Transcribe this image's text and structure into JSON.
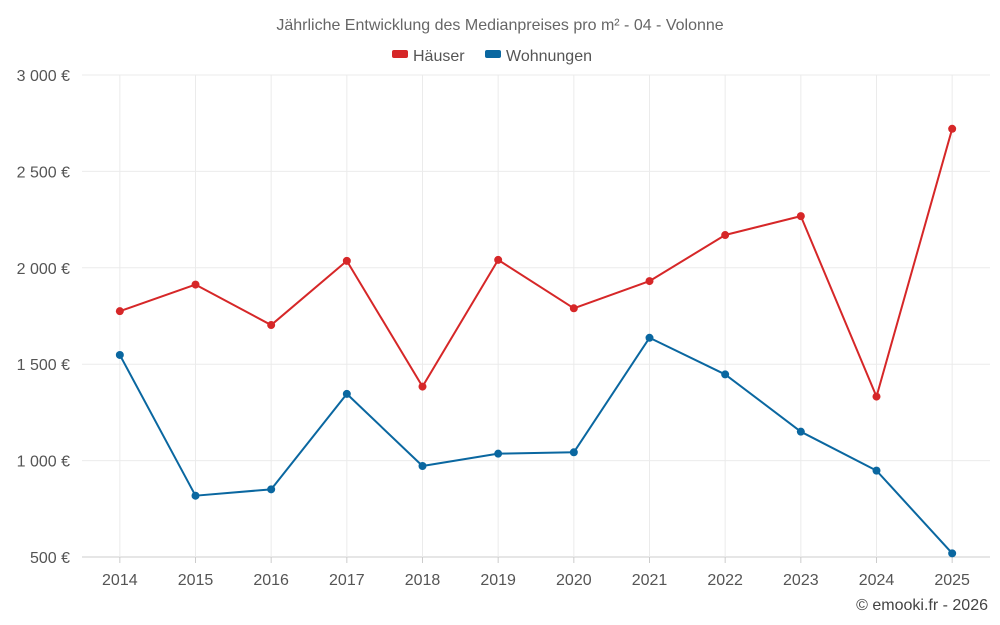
{
  "chart_data": {
    "type": "line",
    "title": "Jährliche Entwicklung des Medianpreises pro m² - 04 - Volonne",
    "categories": [
      "2014",
      "2015",
      "2016",
      "2017",
      "2018",
      "2019",
      "2020",
      "2021",
      "2022",
      "2023",
      "2024",
      "2025"
    ],
    "series": [
      {
        "name": "Häuser",
        "color": "#d62728",
        "values": [
          1775,
          1913,
          1703,
          2036,
          1384,
          2041,
          1790,
          1931,
          2170,
          2268,
          1332,
          2721
        ]
      },
      {
        "name": "Wohnungen",
        "color": "#0a67a0",
        "values": [
          1548,
          818,
          851,
          1346,
          972,
          1036,
          1043,
          1637,
          1447,
          1150,
          948,
          519
        ]
      }
    ],
    "yticks": [
      500,
      1000,
      1500,
      2000,
      2500,
      3000
    ],
    "ytick_labels": [
      "500 €",
      "1 000 €",
      "1 500 €",
      "2 000 €",
      "2 500 €",
      "3 000 €"
    ],
    "ylim": [
      500,
      3000
    ],
    "grid": true,
    "legend_position": "top-center",
    "credit": "© emooki.fr - 2026"
  }
}
